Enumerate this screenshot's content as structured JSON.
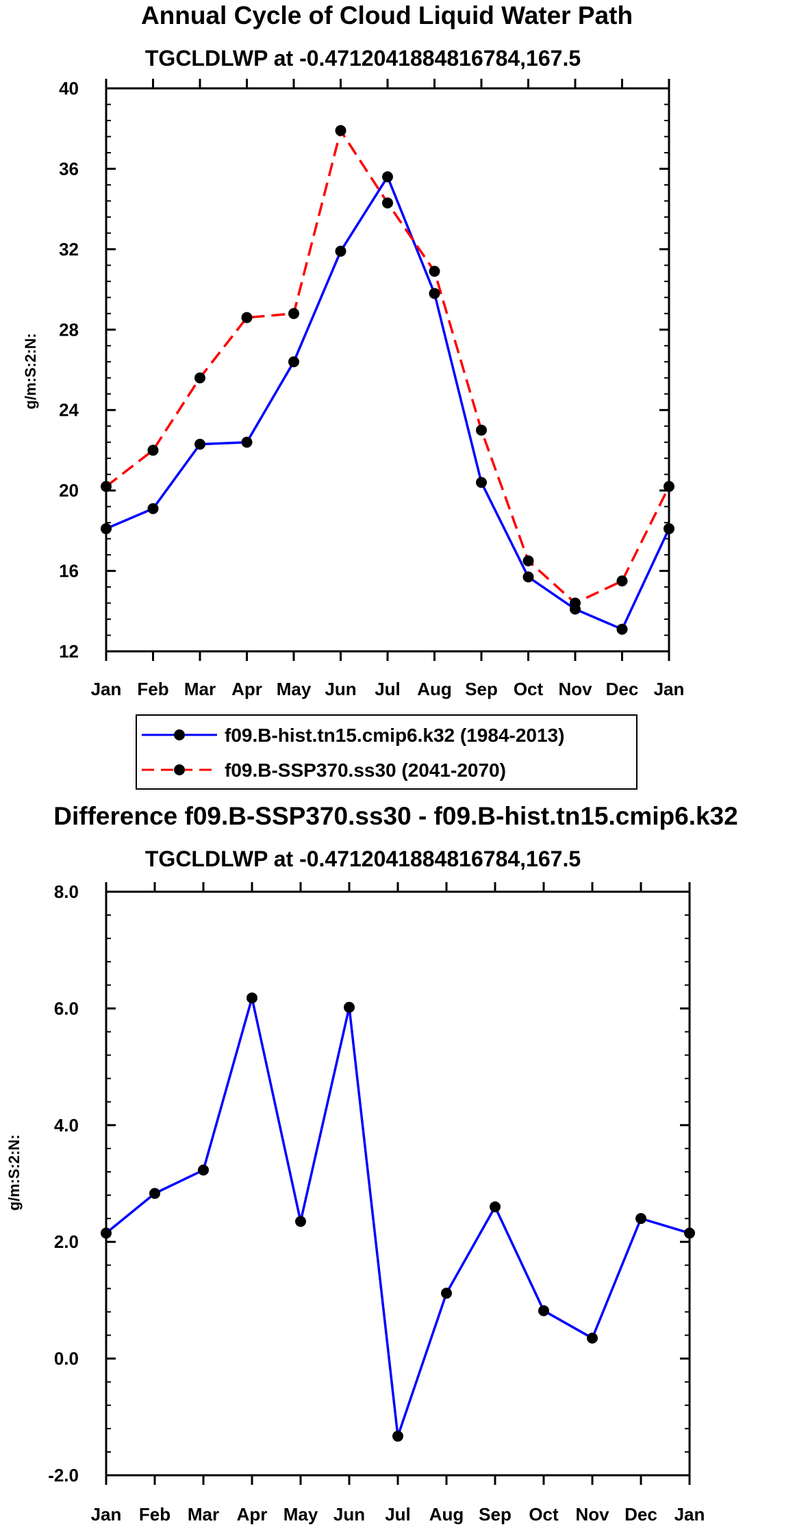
{
  "chart_data": [
    {
      "type": "line",
      "title": "Annual Cycle of Cloud Liquid Water Path",
      "subtitle": "TGCLDLWP at -0.4712041884816784,167.5",
      "xlabel": "",
      "ylabel": "g/m:S:2:N:",
      "categories": [
        "Jan",
        "Feb",
        "Mar",
        "Apr",
        "May",
        "Jun",
        "Jul",
        "Aug",
        "Sep",
        "Oct",
        "Nov",
        "Dec",
        "Jan"
      ],
      "ylim": [
        12,
        40
      ],
      "yticks": [
        12,
        16,
        20,
        24,
        28,
        32,
        36,
        40
      ],
      "ytick_labels": [
        "12",
        "16",
        "20",
        "24",
        "28",
        "32",
        "36",
        "40"
      ],
      "series": [
        {
          "name": "f09.B-hist.tn15.cmip6.k32 (1984-2013)",
          "color": "#0000ff",
          "dash": "solid",
          "values": [
            18.1,
            19.1,
            22.3,
            22.4,
            26.4,
            31.9,
            35.6,
            29.8,
            20.4,
            15.7,
            14.1,
            13.1,
            18.1
          ]
        },
        {
          "name": "f09.B-SSP370.ss30 (2041-2070)",
          "color": "#ff0000",
          "dash": "dashed",
          "values": [
            20.2,
            22.0,
            25.6,
            28.6,
            28.8,
            37.9,
            34.3,
            30.9,
            23.0,
            16.5,
            14.4,
            15.5,
            20.2
          ]
        }
      ],
      "legend": "below"
    },
    {
      "type": "line",
      "title": "Difference f09.B-SSP370.ss30 - f09.B-hist.tn15.cmip6.k32",
      "subtitle": "TGCLDLWP at -0.4712041884816784,167.5",
      "xlabel": "",
      "ylabel": "g/m:S:2:N:",
      "categories": [
        "Jan",
        "Feb",
        "Mar",
        "Apr",
        "May",
        "Jun",
        "Jul",
        "Aug",
        "Sep",
        "Oct",
        "Nov",
        "Dec",
        "Jan"
      ],
      "ylim": [
        -2,
        8
      ],
      "yticks": [
        -2,
        0,
        2,
        4,
        6,
        8
      ],
      "ytick_labels": [
        "-2.0",
        "0.0",
        "2.0",
        "4.0",
        "6.0",
        "8.0"
      ],
      "series": [
        {
          "name": "difference",
          "color": "#0000ff",
          "dash": "solid",
          "values": [
            2.15,
            2.83,
            3.23,
            6.18,
            2.35,
            6.02,
            -1.33,
            1.12,
            2.6,
            0.82,
            0.35,
            2.4,
            2.15
          ]
        }
      ]
    }
  ]
}
